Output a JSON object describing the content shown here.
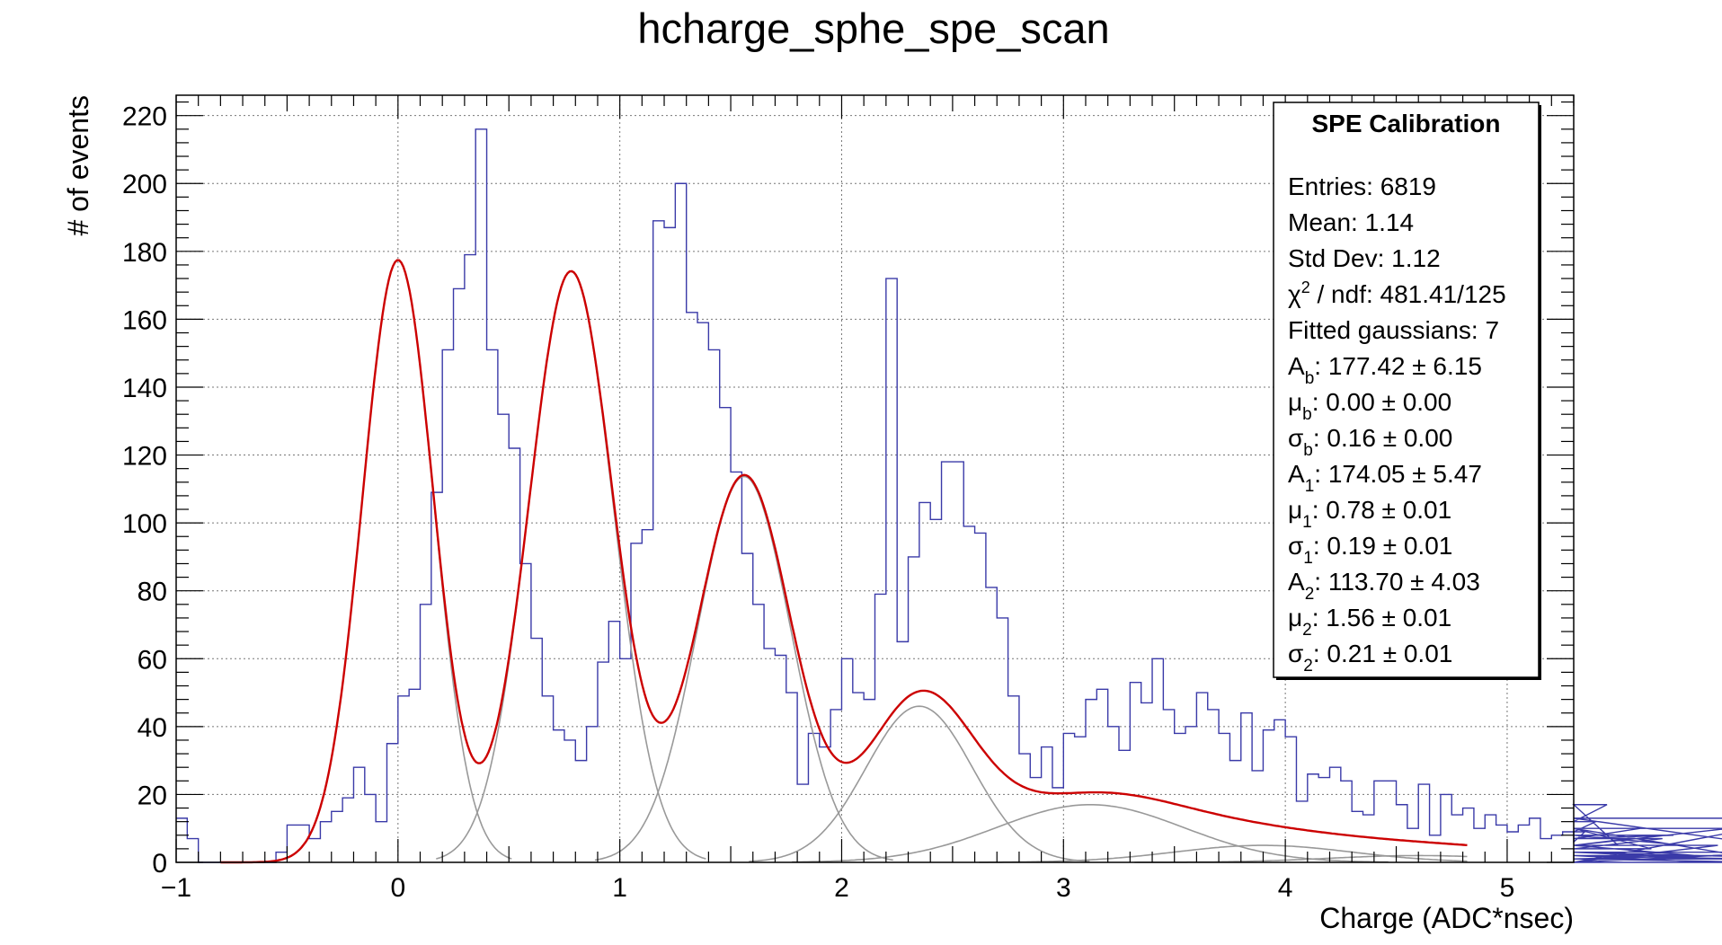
{
  "chart_data": {
    "type": "bar",
    "title": "hcharge_sphe_spe_scan",
    "xlabel": "Charge (ADC*nsec)",
    "ylabel": "# of events",
    "xlim": [
      -1.0,
      5.3
    ],
    "ylim": [
      0,
      226
    ],
    "x_ticks": [
      "−1",
      "0",
      "1",
      "2",
      "3",
      "4",
      "5"
    ],
    "y_ticks": [
      "0",
      "20",
      "40",
      "60",
      "80",
      "100",
      "120",
      "140",
      "160",
      "180",
      "200",
      "220"
    ],
    "grid": true,
    "histogram": {
      "name": "hcharge_sphe_spe_scan",
      "color": "#3a3aa8",
      "bin_width": 0.05,
      "x_start": -1.0,
      "counts": [
        13,
        7,
        0,
        0,
        0,
        0,
        0,
        0,
        0,
        3,
        11,
        11,
        7,
        12,
        15,
        19,
        28,
        20,
        12,
        35,
        49,
        51,
        76,
        109,
        151,
        169,
        179,
        216,
        151,
        132,
        122,
        88,
        66,
        49,
        39,
        36,
        30,
        40,
        59,
        71,
        60,
        94,
        98,
        189,
        187,
        200,
        162,
        159,
        151,
        134,
        115,
        91,
        76,
        63,
        61,
        50,
        23,
        38,
        34,
        45,
        60,
        50,
        48,
        79,
        172,
        65,
        90,
        106,
        101,
        118,
        118,
        99,
        97,
        81,
        72,
        49,
        32,
        25,
        34,
        22,
        38,
        37,
        48,
        51,
        40,
        33,
        53,
        47,
        60,
        45,
        38,
        40,
        50,
        45,
        38,
        30,
        44,
        27,
        39,
        42,
        37,
        18,
        26,
        25,
        28,
        24,
        15,
        14,
        24,
        24,
        17,
        10,
        23,
        8,
        20,
        14,
        16,
        10,
        14,
        11,
        9,
        11,
        13,
        7,
        8,
        9,
        6,
        9,
        12,
        17,
        5,
        7,
        10,
        4,
        7,
        8,
        5,
        2,
        0,
        5,
        10,
        2,
        1,
        1,
        0,
        3,
        0,
        13,
        3,
        1,
        3
      ]
    },
    "total_fit": {
      "name": "Total fit",
      "color": "#cc0000",
      "x_range": [
        -0.8,
        4.82
      ],
      "background": 3.0,
      "components": [
        {
          "A": 177.42,
          "mu": 0.0,
          "sigma": 0.16
        },
        {
          "A": 174.05,
          "mu": 0.78,
          "sigma": 0.19
        },
        {
          "A": 113.7,
          "mu": 1.56,
          "sigma": 0.21
        },
        {
          "A": 46.0,
          "mu": 2.35,
          "sigma": 0.24
        },
        {
          "A": 17.0,
          "mu": 3.12,
          "sigma": 0.42
        },
        {
          "A": 5.0,
          "mu": 3.9,
          "sigma": 0.4
        },
        {
          "A": 2.0,
          "mu": 4.6,
          "sigma": 0.4
        }
      ]
    },
    "component_color": "#999999",
    "stats_box": {
      "header": "SPE Calibration",
      "entries": "Entries: 6819",
      "mean": "Mean: 1.14",
      "stddev": "Std Dev: 1.12",
      "chi2_prefix": "χ",
      "chi2_sup": "2",
      "chi2_rest": " / ndf: 481.41/125",
      "ngauss": "Fitted gaussians: 7",
      "params": [
        {
          "sym": "A",
          "sub": "b",
          "val": ": 177.42 ± 6.15"
        },
        {
          "sym": "μ",
          "sub": "b",
          "val": ": 0.00 ± 0.00"
        },
        {
          "sym": "σ",
          "sub": "b",
          "val": ": 0.16 ± 0.00"
        },
        {
          "sym": "A",
          "sub": "1",
          "val": ": 174.05 ± 5.47"
        },
        {
          "sym": "μ",
          "sub": "1",
          "val": ": 0.78 ± 0.01"
        },
        {
          "sym": "σ",
          "sub": "1",
          "val": ": 0.19 ± 0.01"
        },
        {
          "sym": "A",
          "sub": "2",
          "val": ": 113.70 ± 4.03"
        },
        {
          "sym": "μ",
          "sub": "2",
          "val": ": 1.56 ± 0.01"
        },
        {
          "sym": "σ",
          "sub": "2",
          "val": ": 0.21 ± 0.01"
        }
      ]
    }
  }
}
